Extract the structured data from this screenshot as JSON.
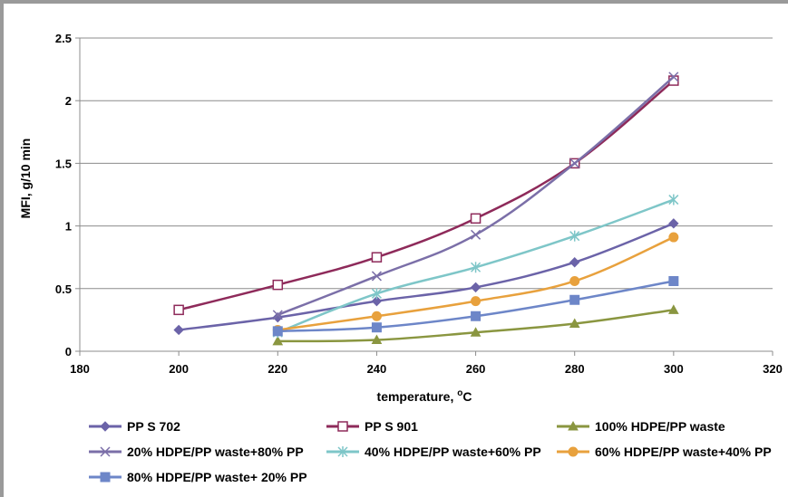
{
  "chart_data": {
    "type": "line",
    "xlabel": "temperature, °C",
    "xlabel_main": "temperature, ",
    "xlabel_deg": "o",
    "xlabel_unit": "C",
    "ylabel": "MFI, g/10 min",
    "xlim": [
      180,
      320
    ],
    "ylim": [
      0,
      2.5
    ],
    "xticks": [
      180,
      200,
      220,
      240,
      260,
      280,
      300,
      320
    ],
    "yticks": [
      "0",
      "0.5",
      "1",
      "1.5",
      "2",
      "2.5"
    ],
    "ytick_values": [
      0,
      0.5,
      1,
      1.5,
      2,
      2.5
    ],
    "grid": "horizontal",
    "legend_position": "bottom",
    "series": [
      {
        "name": "PP S 702",
        "color": "#6b63a8",
        "marker": "diamond",
        "x": [
          200,
          220,
          240,
          260,
          280,
          300
        ],
        "y": [
          0.17,
          0.27,
          0.4,
          0.51,
          0.71,
          1.02
        ]
      },
      {
        "name": "PP S 901",
        "color": "#8e2a5a",
        "marker": "square-open",
        "x": [
          200,
          220,
          240,
          260,
          280,
          300
        ],
        "y": [
          0.33,
          0.53,
          0.75,
          1.06,
          1.5,
          2.16
        ]
      },
      {
        "name": "100% HDPE/PP waste",
        "color": "#8a9640",
        "marker": "triangle",
        "x": [
          220,
          240,
          260,
          280,
          300
        ],
        "y": [
          0.08,
          0.09,
          0.15,
          0.22,
          0.33
        ]
      },
      {
        "name": "20% HDPE/PP waste+80% PP",
        "color": "#7b6fa8",
        "marker": "x",
        "x": [
          220,
          240,
          260,
          280,
          300
        ],
        "y": [
          0.29,
          0.6,
          0.93,
          1.5,
          2.19
        ]
      },
      {
        "name": "40% HDPE/PP waste+60% PP",
        "color": "#7ec6c8",
        "marker": "star",
        "x": [
          220,
          240,
          260,
          280,
          300
        ],
        "y": [
          0.15,
          0.46,
          0.67,
          0.92,
          1.21
        ]
      },
      {
        "name": "60% HDPE/PP waste+40% PP",
        "color": "#e8a13d",
        "marker": "circle",
        "x": [
          220,
          240,
          260,
          280,
          300
        ],
        "y": [
          0.17,
          0.28,
          0.4,
          0.56,
          0.91
        ]
      },
      {
        "name": "80% HDPE/PP waste+ 20% PP",
        "color": "#6d86c8",
        "marker": "square",
        "x": [
          220,
          240,
          260,
          280,
          300
        ],
        "y": [
          0.16,
          0.19,
          0.28,
          0.41,
          0.56
        ]
      }
    ]
  }
}
